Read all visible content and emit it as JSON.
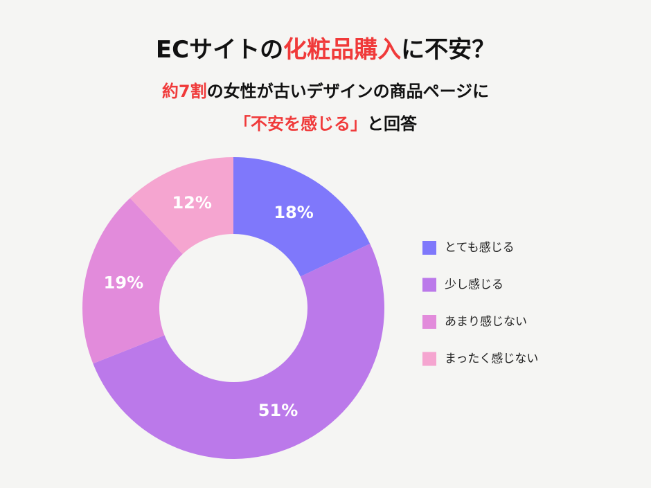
{
  "chart_data": {
    "type": "donut",
    "title": [
      {
        "text": "ECサイトの",
        "color": "#111111"
      },
      {
        "text": "化粧品購入",
        "color": "#f03a3a"
      },
      {
        "text": "に不安？",
        "color": "#111111"
      }
    ],
    "subtitle": [
      [
        {
          "text": "約7割",
          "color": "#f03a3a"
        },
        {
          "text": "の女性が古いデザインの商品ページに",
          "color": "#111111"
        }
      ],
      [
        {
          "text": "「不安を感じる」",
          "color": "#f03a3a"
        },
        {
          "text": "と回答",
          "color": "#111111"
        }
      ]
    ],
    "categories": [
      "とても感じる",
      "少し感じる",
      "あまり感じない",
      "まったく感じない"
    ],
    "values": [
      18,
      51,
      19,
      12
    ],
    "value_labels": [
      "18%",
      "51%",
      "19%",
      "12%"
    ],
    "colors": [
      "#7f78fb",
      "#bb79ea",
      "#e28bdb",
      "#f5a5d0"
    ],
    "legend": "right"
  }
}
